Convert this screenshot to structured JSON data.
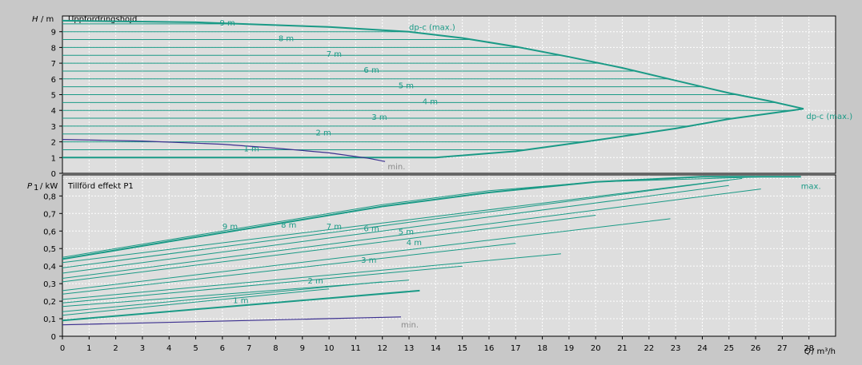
{
  "colors": {
    "background": "#c8c8c8",
    "plot_bg": "#dedede",
    "grid": "#ffffff",
    "curve": "#1a9a86",
    "min_curve": "#3b2f8f",
    "axis": "#000000"
  },
  "chart_data": [
    {
      "type": "line",
      "panel": "head",
      "ylabel_symbol": "H",
      "ylabel_unit": "/ m",
      "title": "Uppfordringshöjd",
      "ylim": [
        0,
        10
      ],
      "yticks": [
        "0",
        "1",
        "2",
        "3",
        "4",
        "5",
        "6",
        "7",
        "8",
        "9"
      ],
      "grid": true,
      "series": [
        {
          "name": "dp-c (max.)",
          "role": "max_curve",
          "points": [
            [
              0,
              9.7
            ],
            [
              5,
              9.6
            ],
            [
              10,
              9.3
            ],
            [
              13,
              9.0
            ],
            [
              15,
              8.6
            ],
            [
              17,
              8.05
            ],
            [
              19,
              7.4
            ],
            [
              21,
              6.7
            ],
            [
              23,
              5.9
            ],
            [
              25,
              5.1
            ],
            [
              26.5,
              4.6
            ],
            [
              27.8,
              4.1
            ]
          ]
        },
        {
          "name": "dp-c (max.)",
          "role": "lower_envelope",
          "points": [
            [
              0,
              1
            ],
            [
              14,
              1
            ],
            [
              17,
              1.4
            ],
            [
              20,
              2.1
            ],
            [
              23,
              2.85
            ],
            [
              25,
              3.45
            ],
            [
              27.8,
              4.1
            ]
          ]
        },
        {
          "name": "min.",
          "role": "min_curve",
          "points": [
            [
              0,
              2.15
            ],
            [
              3,
              2.05
            ],
            [
              6,
              1.85
            ],
            [
              8,
              1.6
            ],
            [
              10,
              1.3
            ],
            [
              11.5,
              0.95
            ],
            [
              12.1,
              0.75
            ]
          ]
        }
      ],
      "constant_lines": [
        1,
        1.5,
        2,
        2.5,
        3,
        3.5,
        4,
        4.5,
        5,
        5.5,
        6,
        6.5,
        7,
        7.5,
        8,
        8.5,
        9,
        9.5
      ],
      "curve_labels": [
        {
          "text": "9 m",
          "x": 5.9,
          "y": 9.4
        },
        {
          "text": "8 m",
          "x": 8.1,
          "y": 8.4
        },
        {
          "text": "7 m",
          "x": 9.9,
          "y": 7.4
        },
        {
          "text": "6 m",
          "x": 11.3,
          "y": 6.4
        },
        {
          "text": "5 m",
          "x": 12.6,
          "y": 5.4
        },
        {
          "text": "4 m",
          "x": 13.5,
          "y": 4.4
        },
        {
          "text": "3 m",
          "x": 11.6,
          "y": 3.4
        },
        {
          "text": "2 m",
          "x": 9.5,
          "y": 2.4
        },
        {
          "text": "1 m",
          "x": 6.8,
          "y": 1.4
        },
        {
          "text": "dp-c (max.)",
          "x": 13.0,
          "y": 9.1
        },
        {
          "text": "dp-c (max.)",
          "x": 27.9,
          "y": 3.45
        },
        {
          "text": "min.",
          "x": 12.2,
          "y": 0.25
        }
      ]
    },
    {
      "type": "line",
      "panel": "power",
      "ylabel_symbol": "P",
      "ylabel_subscript": "1",
      "ylabel_unit": "/ kW",
      "title": "Tillförd effekt P1",
      "xlabel_symbol": "Q",
      "xlabel_unit": "/ m³/h",
      "ylim": [
        0,
        0.92
      ],
      "xlim": [
        0,
        29
      ],
      "yticks": [
        "0",
        "0,1",
        "0,2",
        "0,3",
        "0,4",
        "0,5",
        "0,6",
        "0,7",
        "0,8"
      ],
      "xticks": [
        "0",
        "1",
        "2",
        "3",
        "4",
        "5",
        "6",
        "7",
        "8",
        "9",
        "10",
        "11",
        "12",
        "13",
        "14",
        "15",
        "16",
        "17",
        "18",
        "19",
        "20",
        "21",
        "22",
        "23",
        "24",
        "25",
        "26",
        "27",
        "28"
      ],
      "grid": true,
      "series": [
        {
          "name": "max.",
          "role": "max_curve",
          "points": [
            [
              0,
              0.44
            ],
            [
              4,
              0.54
            ],
            [
              8,
              0.64
            ],
            [
              12,
              0.74
            ],
            [
              16,
              0.82
            ],
            [
              20,
              0.88
            ],
            [
              24,
              0.91
            ],
            [
              27.7,
              0.91
            ]
          ]
        },
        {
          "name": "9 m",
          "points": [
            [
              0,
              0.45
            ],
            [
              6,
              0.6
            ],
            [
              12,
              0.75
            ],
            [
              16,
              0.83
            ],
            [
              20,
              0.88
            ],
            [
              26.5,
              0.91
            ]
          ]
        },
        {
          "name": "8 m",
          "points": [
            [
              0,
              0.42
            ],
            [
              25.5,
              0.9
            ]
          ]
        },
        {
          "name": "7 m",
          "points": [
            [
              0,
              0.39
            ],
            [
              25,
              0.89
            ]
          ]
        },
        {
          "name": "6 m",
          "points": [
            [
              0,
              0.36
            ],
            [
              25,
              0.86
            ]
          ]
        },
        {
          "name": "5 m",
          "points": [
            [
              0,
              0.33
            ],
            [
              26.2,
              0.84
            ]
          ]
        },
        {
          "name": "4 m",
          "points": [
            [
              0,
              0.26
            ],
            [
              22.8,
              0.67
            ]
          ]
        },
        {
          "name": "3 m",
          "points": [
            [
              0,
              0.21
            ],
            [
              18.7,
              0.47
            ]
          ]
        },
        {
          "name": "2 m",
          "points": [
            [
              0,
              0.17
            ],
            [
              13,
              0.32
            ]
          ]
        },
        {
          "name": "1 m",
          "points": [
            [
              0,
              0.09
            ],
            [
              13.4,
              0.26
            ]
          ]
        },
        {
          "name": "min.",
          "role": "min_curve",
          "points": [
            [
              0,
              0.065
            ],
            [
              12.7,
              0.11
            ]
          ]
        }
      ],
      "extra_lines": [
        [
          [
            0,
            0.31
          ],
          [
            20,
            0.69
          ]
        ],
        [
          [
            0,
            0.24
          ],
          [
            17,
            0.53
          ]
        ],
        [
          [
            0,
            0.19
          ],
          [
            15,
            0.4
          ]
        ],
        [
          [
            0,
            0.14
          ],
          [
            12,
            0.31
          ]
        ],
        [
          [
            0,
            0.12
          ],
          [
            10,
            0.27
          ]
        ]
      ],
      "curve_labels": [
        {
          "text": "9 m",
          "x": 6.0,
          "y": 0.61
        },
        {
          "text": "8 m",
          "x": 8.2,
          "y": 0.62
        },
        {
          "text": "7 m",
          "x": 9.9,
          "y": 0.61
        },
        {
          "text": "6 m",
          "x": 11.3,
          "y": 0.6
        },
        {
          "text": "5 m",
          "x": 12.6,
          "y": 0.58
        },
        {
          "text": "4 m",
          "x": 12.9,
          "y": 0.52
        },
        {
          "text": "3 m",
          "x": 11.2,
          "y": 0.42
        },
        {
          "text": "2 m",
          "x": 9.2,
          "y": 0.3
        },
        {
          "text": "1 m",
          "x": 6.4,
          "y": 0.19
        },
        {
          "text": "max.",
          "x": 27.7,
          "y": 0.84
        },
        {
          "text": "min.",
          "x": 12.7,
          "y": 0.05
        }
      ]
    }
  ]
}
